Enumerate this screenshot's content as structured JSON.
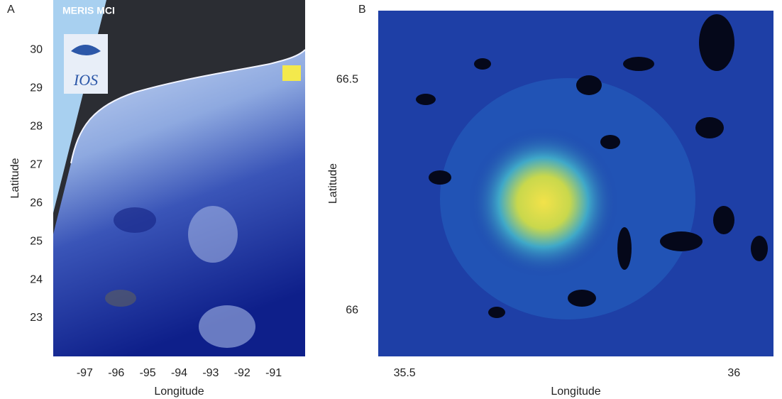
{
  "panels": [
    {
      "label": "A",
      "image_text": "MERIS MCI",
      "logo_text": "IOS",
      "xlabel": "Longitude",
      "ylabel": "Latitude",
      "xlim": [
        -98,
        -90
      ],
      "ylim": [
        22,
        31.3
      ],
      "xticks": [
        -97,
        -96,
        -95,
        -94,
        -93,
        -92,
        -91
      ],
      "yticks": [
        23,
        24,
        25,
        26,
        27,
        28,
        29,
        30
      ]
    },
    {
      "label": "B",
      "xlabel": "Longitude",
      "ylabel": "Latitude",
      "xlim": [
        35.46,
        36.06
      ],
      "ylim": [
        65.9,
        66.65
      ],
      "xticks": [
        35.5,
        36
      ],
      "yticks": [
        66,
        66.5
      ]
    }
  ]
}
